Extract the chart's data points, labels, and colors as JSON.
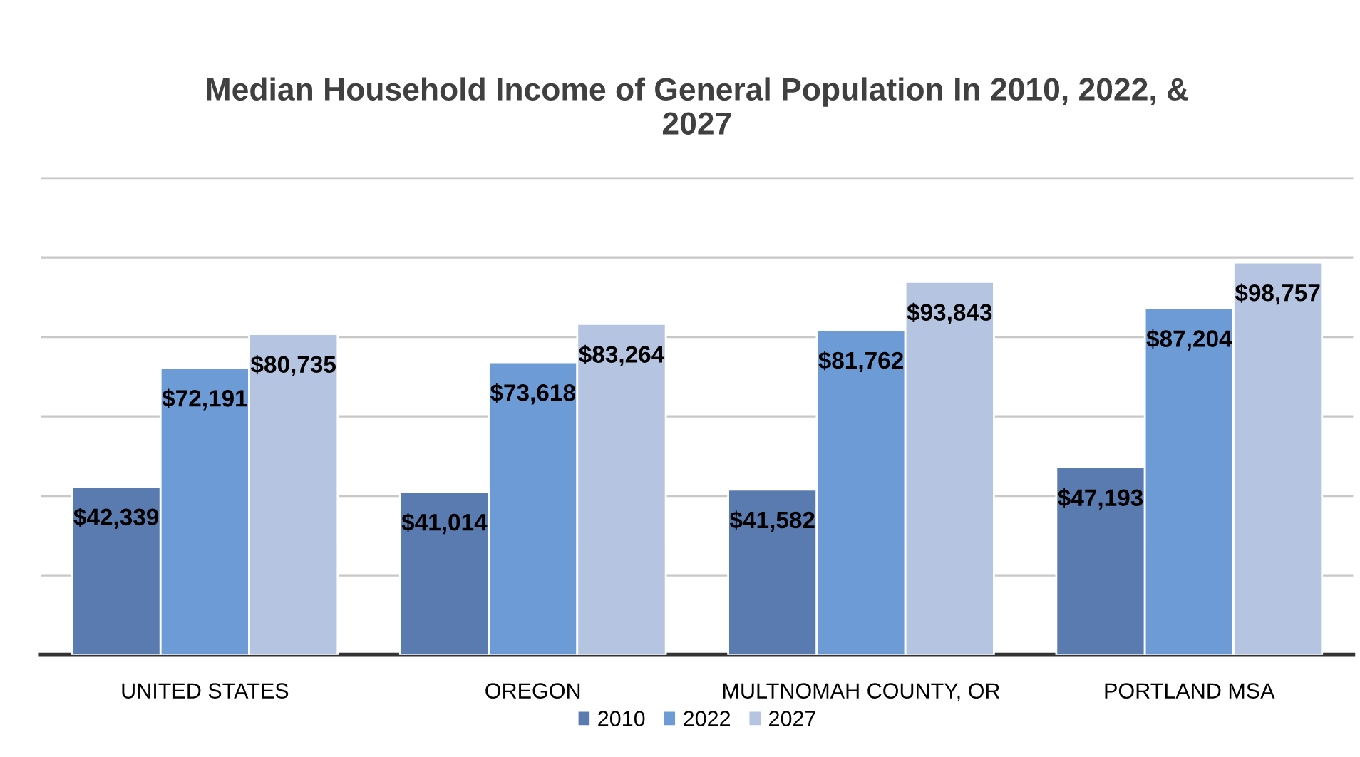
{
  "chart_data": {
    "type": "bar",
    "title": "Median Household Income of General Population In 2010, 2022, &\n2027",
    "categories": [
      "UNITED STATES",
      "OREGON",
      "MULTNOMAH COUNTY, OR",
      "PORTLAND MSA"
    ],
    "series": [
      {
        "name": "2010",
        "color": "#5a7bb0",
        "values": [
          42339,
          41014,
          41582,
          47193
        ],
        "value_labels": [
          "$42,339",
          "$41,014",
          "$41,582",
          "$47,193"
        ]
      },
      {
        "name": "2022",
        "color": "#6c9bd6",
        "values": [
          72191,
          73618,
          81762,
          87204
        ],
        "value_labels": [
          "$72,191",
          "$73,618",
          "$81,762",
          "$87,204"
        ]
      },
      {
        "name": "2027",
        "color": "#b5c4e1",
        "values": [
          80735,
          83264,
          93843,
          98757
        ],
        "value_labels": [
          "$80,735",
          "$83,264",
          "$93,843",
          "$98,757"
        ]
      }
    ],
    "ylim": [
      0,
      120000
    ],
    "yticks": [
      {
        "value": 0,
        "label": null
      },
      {
        "value": 20000,
        "label": null
      },
      {
        "value": 40000,
        "label": null
      },
      {
        "value": 60000,
        "label": null
      },
      {
        "value": 80000,
        "label": null
      },
      {
        "value": 100000,
        "label": null
      },
      {
        "value": 120000,
        "label": null
      }
    ],
    "tick_labels": "x",
    "grid": "y",
    "legend": "bottom"
  }
}
